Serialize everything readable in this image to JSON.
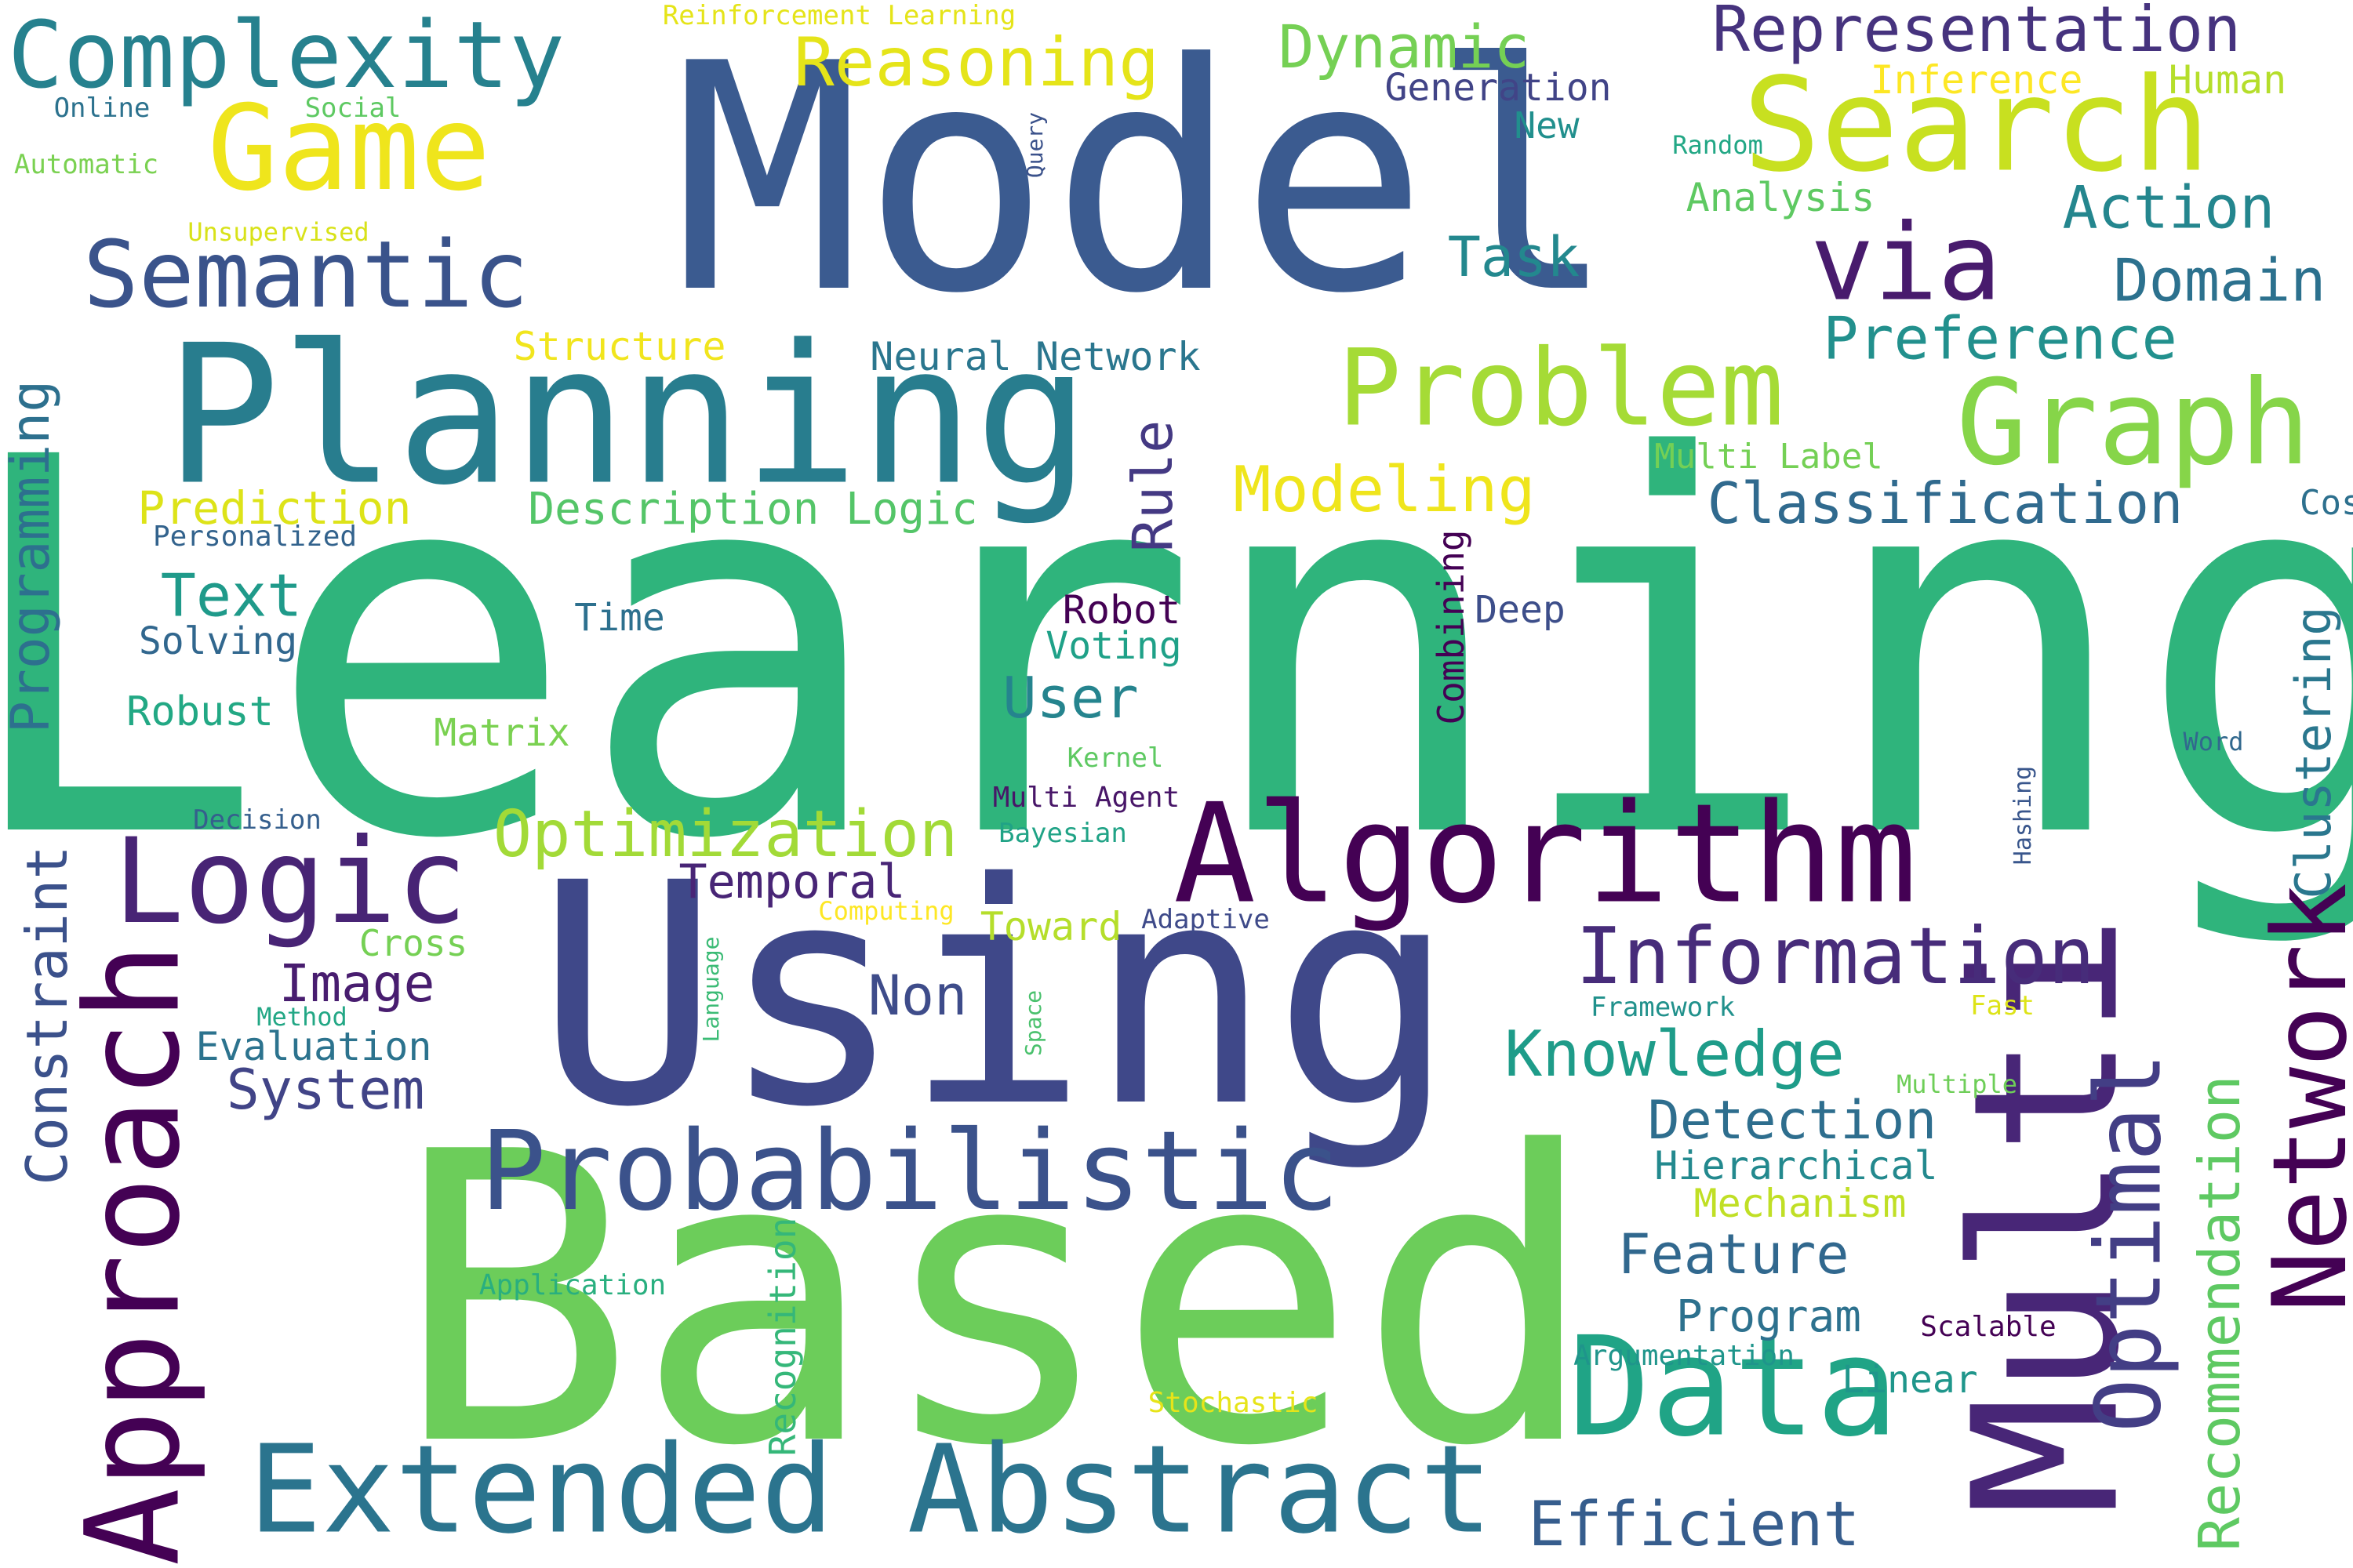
{
  "word_cloud": {
    "words": [
      {
        "text": "Learning",
        "color": "#2fb47c"
      },
      {
        "text": "Model",
        "color": "#3b5b90"
      },
      {
        "text": "Based",
        "color": "#6ccd5a"
      },
      {
        "text": "Using",
        "color": "#3f4889"
      },
      {
        "text": "Planning",
        "color": "#287d8e"
      },
      {
        "text": "Algorithm",
        "color": "#440154"
      },
      {
        "text": "Multi",
        "color": "#482677"
      },
      {
        "text": "Extended Abstract",
        "color": "#2b748e"
      },
      {
        "text": "Probabilistic",
        "color": "#3b528b"
      },
      {
        "text": "Data",
        "color": "#20a486"
      },
      {
        "text": "Approach",
        "color": "#440154"
      },
      {
        "text": "Logic",
        "color": "#482475"
      },
      {
        "text": "Search",
        "color": "#c8e020"
      },
      {
        "text": "Graph",
        "color": "#86d549"
      },
      {
        "text": "Problem",
        "color": "#a5db36"
      },
      {
        "text": "Network",
        "color": "#440154"
      },
      {
        "text": "Optimal",
        "color": "#433e85"
      },
      {
        "text": "Semantic",
        "color": "#3a538b"
      },
      {
        "text": "Game",
        "color": "#efe51c"
      },
      {
        "text": "Complexity",
        "color": "#26818e"
      },
      {
        "text": "via",
        "color": "#481b6d"
      },
      {
        "text": "Information",
        "color": "#472c7a"
      },
      {
        "text": "Reasoning",
        "color": "#e5e419"
      },
      {
        "text": "Representation",
        "color": "#46337e"
      },
      {
        "text": "Dynamic",
        "color": "#75d054"
      },
      {
        "text": "Action",
        "color": "#24868e"
      },
      {
        "text": "Domain",
        "color": "#2c718e"
      },
      {
        "text": "Preference",
        "color": "#22908d"
      },
      {
        "text": "Classification",
        "color": "#306a8e"
      },
      {
        "text": "Modeling",
        "color": "#efe51c"
      },
      {
        "text": "Optimization",
        "color": "#a2da37"
      },
      {
        "text": "Knowledge",
        "color": "#1e9c89"
      },
      {
        "text": "Efficient",
        "color": "#365d8d"
      },
      {
        "text": "Recommendation",
        "color": "#5ec962"
      },
      {
        "text": "Constraint",
        "color": "#3b518b"
      },
      {
        "text": "Programming",
        "color": "#2d708e"
      },
      {
        "text": "Clustering",
        "color": "#2a778e"
      },
      {
        "text": "Detection",
        "color": "#2e6e8e"
      },
      {
        "text": "Feature",
        "color": "#31688e"
      },
      {
        "text": "Task",
        "color": "#23888e"
      },
      {
        "text": "Text",
        "color": "#1f9a8a"
      },
      {
        "text": "User",
        "color": "#25848e"
      },
      {
        "text": "Image",
        "color": "#481d6f"
      },
      {
        "text": "System",
        "color": "#414487"
      },
      {
        "text": "Non",
        "color": "#3e4c8a"
      },
      {
        "text": "Temporal",
        "color": "#482576"
      },
      {
        "text": "Description Logic",
        "color": "#54c568"
      },
      {
        "text": "Prediction",
        "color": "#dde318"
      },
      {
        "text": "Neural Network",
        "color": "#2a768e"
      },
      {
        "text": "Rule",
        "color": "#443983"
      },
      {
        "text": "Structure",
        "color": "#f1e51d"
      },
      {
        "text": "Program",
        "color": "#2d718e"
      },
      {
        "text": "Hierarchical",
        "color": "#23898e"
      },
      {
        "text": "Mechanism",
        "color": "#c0df25"
      },
      {
        "text": "Evaluation",
        "color": "#2c738e"
      },
      {
        "text": "Robust",
        "color": "#22a884"
      },
      {
        "text": "Solving",
        "color": "#31678e"
      },
      {
        "text": "Matrix",
        "color": "#7ad151"
      },
      {
        "text": "Time",
        "color": "#2d708e"
      },
      {
        "text": "Robot",
        "color": "#440154"
      },
      {
        "text": "Voting",
        "color": "#1fa188"
      },
      {
        "text": "Deep",
        "color": "#3d4e8a"
      },
      {
        "text": "Combining",
        "color": "#440154"
      },
      {
        "text": "Linear",
        "color": "#1f968b"
      },
      {
        "text": "Cross",
        "color": "#75d054"
      },
      {
        "text": "Toward",
        "color": "#b5de2b"
      },
      {
        "text": "Generation",
        "color": "#414487"
      },
      {
        "text": "New",
        "color": "#218f8d"
      },
      {
        "text": "Analysis",
        "color": "#5ec962"
      },
      {
        "text": "Inference",
        "color": "#fde725"
      },
      {
        "text": "Human",
        "color": "#b5de2b"
      },
      {
        "text": "Multi Label",
        "color": "#74d055"
      },
      {
        "text": "Cost",
        "color": "#2d708e"
      },
      {
        "text": "Personalized",
        "color": "#33638d"
      },
      {
        "text": "Online",
        "color": "#2c728e"
      },
      {
        "text": "Social",
        "color": "#5ec962"
      },
      {
        "text": "Automatic",
        "color": "#7ad151"
      },
      {
        "text": "Unsupervised",
        "color": "#d8e219"
      },
      {
        "text": "Reinforcement Learning",
        "color": "#e5e419"
      },
      {
        "text": "Query",
        "color": "#3b528b"
      },
      {
        "text": "Random",
        "color": "#22a785"
      },
      {
        "text": "Kernel",
        "color": "#5ec962"
      },
      {
        "text": "Multi Agent",
        "color": "#481668"
      },
      {
        "text": "Bayesian",
        "color": "#20a386"
      },
      {
        "text": "Decision",
        "color": "#355f8d"
      },
      {
        "text": "Computing",
        "color": "#fde725"
      },
      {
        "text": "Adaptive",
        "color": "#3e4a89"
      },
      {
        "text": "Method",
        "color": "#22a785"
      },
      {
        "text": "Language",
        "color": "#3bbb75"
      },
      {
        "text": "Space",
        "color": "#4ac16d"
      },
      {
        "text": "Framework",
        "color": "#21918c"
      },
      {
        "text": "Fast",
        "color": "#dde318"
      },
      {
        "text": "Multiple",
        "color": "#6ece58"
      },
      {
        "text": "Word",
        "color": "#31688e"
      },
      {
        "text": "Hashing",
        "color": "#39568c"
      },
      {
        "text": "Application",
        "color": "#29af7f"
      },
      {
        "text": "Recognition",
        "color": "#35b779"
      },
      {
        "text": "Stochastic",
        "color": "#e7e419"
      },
      {
        "text": "Argumentation",
        "color": "#1f958b"
      },
      {
        "text": "Scalable",
        "color": "#440154"
      }
    ]
  }
}
